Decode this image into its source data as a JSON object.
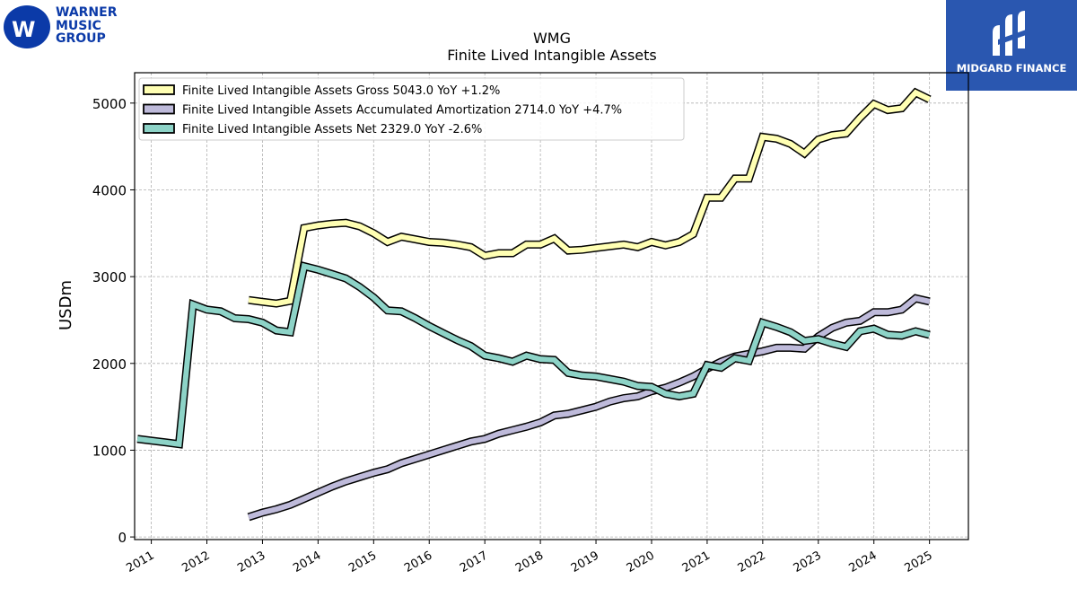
{
  "logos": {
    "wmg": {
      "line1": "WARNER",
      "line2": "MUSIC",
      "line3": "GROUP",
      "color": "#0b3aa8"
    },
    "midgard": {
      "label": "MIDGARD FINANCE",
      "color": "#2a57b0"
    }
  },
  "chart_data": {
    "type": "line",
    "title": "WMG",
    "subtitle": "Finite Lived Intangible Assets",
    "ylabel": "USDm",
    "xlabel": "",
    "ylim": [
      -30,
      5350
    ],
    "xlim": [
      2010.7,
      2025.7
    ],
    "yticks": [
      0,
      1000,
      2000,
      3000,
      4000,
      5000
    ],
    "xticks": [
      "2011",
      "2012",
      "2013",
      "2014",
      "2015",
      "2016",
      "2017",
      "2018",
      "2019",
      "2020",
      "2021",
      "2022",
      "2023",
      "2024",
      "2025"
    ],
    "grid": true,
    "legend_position": "top-left",
    "series": [
      {
        "name": "Finite Lived Intangible Assets Gross",
        "legend": "Finite Lived Intangible Assets Gross  5043.0 YoY +1.2%",
        "color": "#ffffb3",
        "points": [
          [
            2012.75,
            2730
          ],
          [
            2013,
            2710
          ],
          [
            2013.25,
            2690
          ],
          [
            2013.5,
            2720
          ],
          [
            2013.75,
            3560
          ],
          [
            2014,
            3590
          ],
          [
            2014.25,
            3610
          ],
          [
            2014.5,
            3620
          ],
          [
            2014.75,
            3580
          ],
          [
            2015,
            3500
          ],
          [
            2015.25,
            3400
          ],
          [
            2015.5,
            3460
          ],
          [
            2015.75,
            3430
          ],
          [
            2016,
            3400
          ],
          [
            2016.25,
            3390
          ],
          [
            2016.5,
            3370
          ],
          [
            2016.75,
            3340
          ],
          [
            2017,
            3240
          ],
          [
            2017.25,
            3270
          ],
          [
            2017.5,
            3270
          ],
          [
            2017.75,
            3370
          ],
          [
            2018,
            3370
          ],
          [
            2018.25,
            3440
          ],
          [
            2018.5,
            3300
          ],
          [
            2018.75,
            3310
          ],
          [
            2019,
            3330
          ],
          [
            2019.25,
            3350
          ],
          [
            2019.5,
            3370
          ],
          [
            2019.75,
            3340
          ],
          [
            2020,
            3400
          ],
          [
            2020.25,
            3360
          ],
          [
            2020.5,
            3400
          ],
          [
            2020.75,
            3490
          ],
          [
            2021,
            3910
          ],
          [
            2021.25,
            3910
          ],
          [
            2021.5,
            4130
          ],
          [
            2021.75,
            4130
          ],
          [
            2022,
            4610
          ],
          [
            2022.25,
            4590
          ],
          [
            2022.5,
            4530
          ],
          [
            2022.75,
            4420
          ],
          [
            2023,
            4580
          ],
          [
            2023.25,
            4630
          ],
          [
            2023.5,
            4650
          ],
          [
            2023.75,
            4830
          ],
          [
            2024,
            4990
          ],
          [
            2024.25,
            4920
          ],
          [
            2024.5,
            4940
          ],
          [
            2024.75,
            5120
          ],
          [
            2025,
            5043
          ]
        ]
      },
      {
        "name": "Finite Lived Intangible Assets Accumulated Amortization",
        "legend": "Finite Lived Intangible Assets Accumulated Amortization  2714.0 YoY +4.7%",
        "color": "#bebada",
        "points": [
          [
            2012.75,
            230
          ],
          [
            2013,
            280
          ],
          [
            2013.25,
            320
          ],
          [
            2013.5,
            370
          ],
          [
            2013.75,
            440
          ],
          [
            2014,
            510
          ],
          [
            2014.25,
            580
          ],
          [
            2014.5,
            640
          ],
          [
            2014.75,
            690
          ],
          [
            2015,
            740
          ],
          [
            2015.25,
            780
          ],
          [
            2015.5,
            850
          ],
          [
            2015.75,
            900
          ],
          [
            2016,
            950
          ],
          [
            2016.25,
            1000
          ],
          [
            2016.5,
            1050
          ],
          [
            2016.75,
            1100
          ],
          [
            2017,
            1130
          ],
          [
            2017.25,
            1190
          ],
          [
            2017.5,
            1230
          ],
          [
            2017.75,
            1270
          ],
          [
            2018,
            1320
          ],
          [
            2018.25,
            1400
          ],
          [
            2018.5,
            1420
          ],
          [
            2018.75,
            1460
          ],
          [
            2019,
            1500
          ],
          [
            2019.25,
            1560
          ],
          [
            2019.5,
            1600
          ],
          [
            2019.75,
            1620
          ],
          [
            2020,
            1680
          ],
          [
            2020.25,
            1720
          ],
          [
            2020.5,
            1780
          ],
          [
            2020.75,
            1850
          ],
          [
            2021,
            1940
          ],
          [
            2021.25,
            2020
          ],
          [
            2021.5,
            2080
          ],
          [
            2021.75,
            2110
          ],
          [
            2022,
            2140
          ],
          [
            2022.25,
            2180
          ],
          [
            2022.5,
            2180
          ],
          [
            2022.75,
            2170
          ],
          [
            2023,
            2310
          ],
          [
            2023.25,
            2410
          ],
          [
            2023.5,
            2470
          ],
          [
            2023.75,
            2490
          ],
          [
            2024,
            2590
          ],
          [
            2024.25,
            2590
          ],
          [
            2024.5,
            2620
          ],
          [
            2024.75,
            2750
          ],
          [
            2025,
            2714
          ]
        ]
      },
      {
        "name": "Finite Lived Intangible Assets Net",
        "legend": "Finite Lived Intangible Assets Net  2329.0 YoY -2.6%",
        "color": "#8dd3c7",
        "points": [
          [
            2010.75,
            1130
          ],
          [
            2011,
            1110
          ],
          [
            2011.25,
            1090
          ],
          [
            2011.5,
            1070
          ],
          [
            2011.75,
            2680
          ],
          [
            2012,
            2620
          ],
          [
            2012.25,
            2600
          ],
          [
            2012.5,
            2520
          ],
          [
            2012.75,
            2510
          ],
          [
            2013,
            2470
          ],
          [
            2013.25,
            2380
          ],
          [
            2013.5,
            2360
          ],
          [
            2013.75,
            3120
          ],
          [
            2014,
            3080
          ],
          [
            2014.25,
            3030
          ],
          [
            2014.5,
            2980
          ],
          [
            2014.75,
            2880
          ],
          [
            2015,
            2760
          ],
          [
            2015.25,
            2610
          ],
          [
            2015.5,
            2600
          ],
          [
            2015.75,
            2520
          ],
          [
            2016,
            2430
          ],
          [
            2016.25,
            2350
          ],
          [
            2016.5,
            2270
          ],
          [
            2016.75,
            2200
          ],
          [
            2017,
            2090
          ],
          [
            2017.25,
            2060
          ],
          [
            2017.5,
            2020
          ],
          [
            2017.75,
            2090
          ],
          [
            2018,
            2050
          ],
          [
            2018.25,
            2040
          ],
          [
            2018.5,
            1890
          ],
          [
            2018.75,
            1860
          ],
          [
            2019,
            1850
          ],
          [
            2019.25,
            1820
          ],
          [
            2019.5,
            1790
          ],
          [
            2019.75,
            1740
          ],
          [
            2020,
            1730
          ],
          [
            2020.25,
            1650
          ],
          [
            2020.5,
            1620
          ],
          [
            2020.75,
            1650
          ],
          [
            2021,
            1980
          ],
          [
            2021.25,
            1950
          ],
          [
            2021.5,
            2060
          ],
          [
            2021.75,
            2030
          ],
          [
            2022,
            2470
          ],
          [
            2022.25,
            2420
          ],
          [
            2022.5,
            2360
          ],
          [
            2022.75,
            2260
          ],
          [
            2023,
            2280
          ],
          [
            2023.25,
            2230
          ],
          [
            2023.5,
            2190
          ],
          [
            2023.75,
            2370
          ],
          [
            2024,
            2400
          ],
          [
            2024.25,
            2330
          ],
          [
            2024.5,
            2320
          ],
          [
            2024.75,
            2370
          ],
          [
            2025,
            2329
          ]
        ]
      }
    ]
  }
}
